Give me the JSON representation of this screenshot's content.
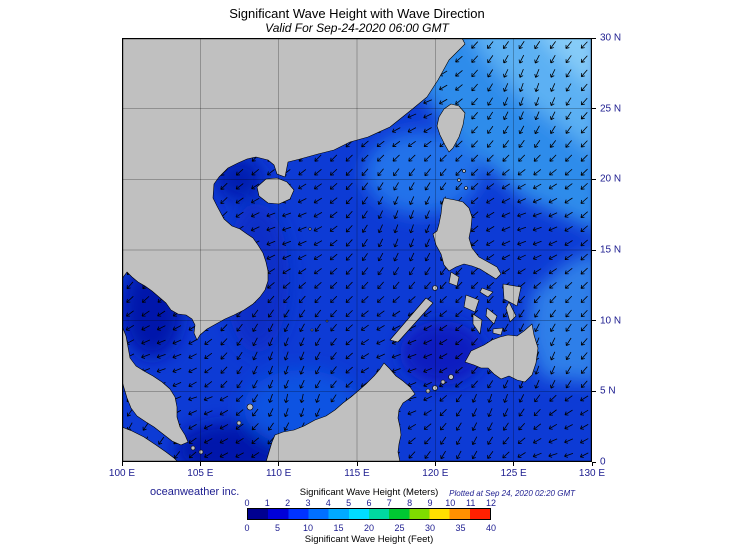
{
  "title": "Significant Wave Height with Wave Direction",
  "subtitle": "Valid For Sep-24-2020 06:00 GMT",
  "branding": "oceanweather inc.",
  "plotted_at": "Plotted at Sep 24, 2020 02:20 GMT",
  "axes": {
    "x_ticks": [
      "100 E",
      "105 E",
      "110 E",
      "115 E",
      "120 E",
      "125 E",
      "130 E"
    ],
    "y_ticks": [
      "0",
      "5 N",
      "10 N",
      "15 N",
      "20 N",
      "25 N",
      "30 N"
    ]
  },
  "colorbar": {
    "meters_title": "Significant Wave Height (Meters)",
    "feet_title": "Significant Wave Height (Feet)",
    "meters_ticks": [
      "0",
      "1",
      "2",
      "3",
      "4",
      "5",
      "6",
      "7",
      "8",
      "9",
      "10",
      "11",
      "12"
    ],
    "feet_ticks": [
      "0",
      "5",
      "10",
      "15",
      "20",
      "25",
      "30",
      "35",
      "40"
    ],
    "segment_colors": [
      "#000090",
      "#0000d8",
      "#0033ff",
      "#0070ff",
      "#00aaff",
      "#00ddff",
      "#00d8a0",
      "#00c832",
      "#7fdc00",
      "#ffe000",
      "#ff9000",
      "#ff2000"
    ]
  },
  "map": {
    "colors": {
      "ocean_base": "#0d3bd5",
      "land": "#c0c0c0",
      "coastline": "#000000",
      "arrow": "#000000",
      "label_text": "#1c1c8f"
    },
    "arrow_base_angle_deg": 135,
    "arrow_grid_deg": 1
  }
}
